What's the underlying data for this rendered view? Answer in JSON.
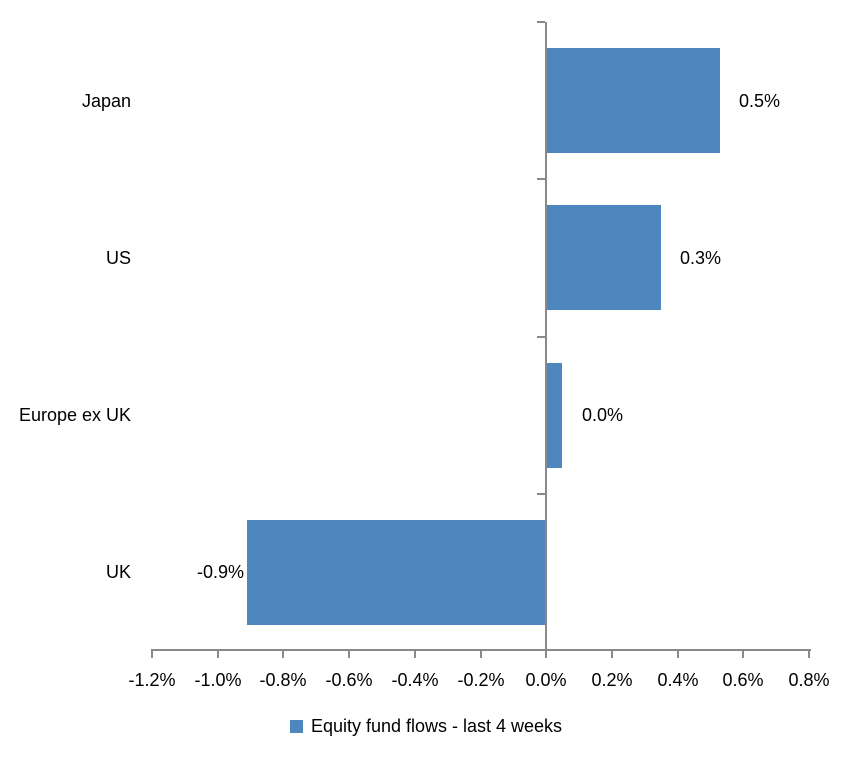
{
  "chart_data": {
    "type": "bar",
    "orientation": "horizontal",
    "title": "",
    "categories": [
      "Japan",
      "US",
      "Europe ex UK",
      "UK"
    ],
    "values": [
      0.53,
      0.35,
      0.05,
      -0.91
    ],
    "data_labels": [
      "0.5%",
      "0.3%",
      "0.0%",
      "-0.9%"
    ],
    "value_unit": "percent",
    "xlim": [
      -1.2,
      0.8
    ],
    "xticks": [
      -1.2,
      -1.0,
      -0.8,
      -0.6,
      -0.4,
      -0.2,
      0.0,
      0.2,
      0.4,
      0.6,
      0.8
    ],
    "xtick_labels": [
      "-1.2%",
      "-1.0%",
      "-0.8%",
      "-0.6%",
      "-0.4%",
      "-0.2%",
      "0.0%",
      "0.2%",
      "0.4%",
      "0.6%",
      "0.8%"
    ],
    "grid": false,
    "legend": {
      "position": "bottom",
      "label": "Equity fund flows - last 4 weeks"
    },
    "colors": {
      "bar": "#4E87BE",
      "axis": "#898989",
      "text": "#000000",
      "background": "#FFFFFF"
    }
  }
}
